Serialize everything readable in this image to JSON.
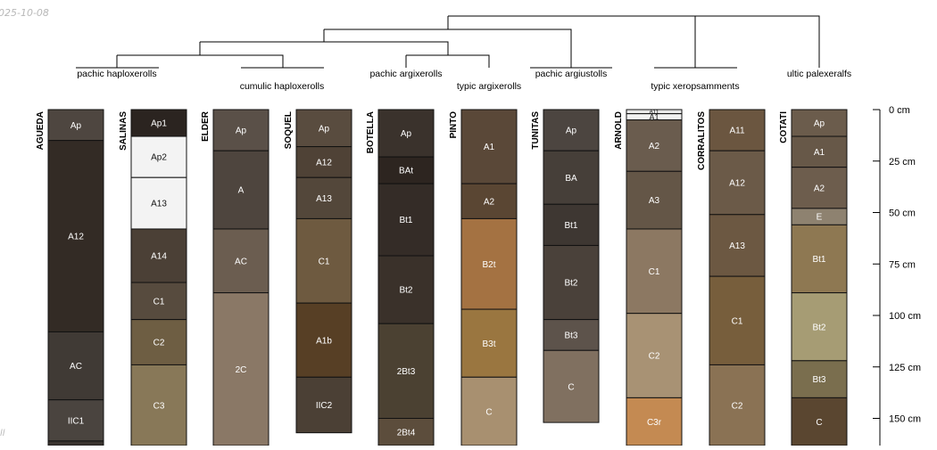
{
  "date_label": "025-10-08",
  "corner_label": "ll",
  "taxa": [
    {
      "id": "pachic-haploxerolls",
      "label": "pachic haploxerolls"
    },
    {
      "id": "cumulic-haploxerolls",
      "label": "cumulic haploxerolls"
    },
    {
      "id": "pachic-argixerolls",
      "label": "pachic argixerolls"
    },
    {
      "id": "typic-argixerolls",
      "label": "typic argixerolls"
    },
    {
      "id": "pachic-argiustolls",
      "label": "pachic argiustolls"
    },
    {
      "id": "typic-xeropsamments",
      "label": "typic xeropsamments"
    },
    {
      "id": "ultic-palexeralfs",
      "label": "ultic palexeralfs"
    }
  ],
  "depth_axis": {
    "unit": "cm",
    "ticks": [
      {
        "depth": 0,
        "label": "0 cm"
      },
      {
        "depth": 25,
        "label": "25 cm"
      },
      {
        "depth": 50,
        "label": "50 cm"
      },
      {
        "depth": 75,
        "label": "75 cm"
      },
      {
        "depth": 100,
        "label": "100 cm"
      },
      {
        "depth": 125,
        "label": "125 cm"
      },
      {
        "depth": 150,
        "label": "150 cm"
      }
    ]
  },
  "profiles": [
    {
      "name": "AGUEDA",
      "horizons": [
        {
          "name": "Ap",
          "top": 0,
          "bottom": 15,
          "color": "#4e4640"
        },
        {
          "name": "A12",
          "top": 15,
          "bottom": 108,
          "color": "#332b25"
        },
        {
          "name": "AC",
          "top": 108,
          "bottom": 141,
          "color": "#403a35"
        },
        {
          "name": "IIC1",
          "top": 141,
          "bottom": 161,
          "color": "#4a443f"
        },
        {
          "name": "",
          "top": 161,
          "bottom": 170,
          "color": "#3a342f"
        }
      ]
    },
    {
      "name": "SALINAS",
      "horizons": [
        {
          "name": "Ap1",
          "top": 0,
          "bottom": 13,
          "color": "#2b2420"
        },
        {
          "name": "Ap2",
          "top": 13,
          "bottom": 33,
          "color": "#f3f3f3"
        },
        {
          "name": "A13",
          "top": 33,
          "bottom": 58,
          "color": "#f3f3f3"
        },
        {
          "name": "A14",
          "top": 58,
          "bottom": 84,
          "color": "#4b4036"
        },
        {
          "name": "C1",
          "top": 84,
          "bottom": 102,
          "color": "#574b3e"
        },
        {
          "name": "C2",
          "top": 102,
          "bottom": 124,
          "color": "#6e5e43"
        },
        {
          "name": "C3",
          "top": 124,
          "bottom": 170,
          "color": "#887858"
        }
      ]
    },
    {
      "name": "ELDER",
      "horizons": [
        {
          "name": "Ap",
          "top": 0,
          "bottom": 20,
          "color": "#5a5048"
        },
        {
          "name": "A",
          "top": 20,
          "bottom": 58,
          "color": "#4e453e"
        },
        {
          "name": "AC",
          "top": 58,
          "bottom": 89,
          "color": "#6b5d50"
        },
        {
          "name": "2C",
          "top": 89,
          "bottom": 170,
          "color": "#8a7866"
        }
      ]
    },
    {
      "name": "SOQUEL",
      "horizons": [
        {
          "name": "Ap",
          "top": 0,
          "bottom": 18,
          "color": "#594c3f"
        },
        {
          "name": "A12",
          "top": 18,
          "bottom": 33,
          "color": "#4f4236"
        },
        {
          "name": "A13",
          "top": 33,
          "bottom": 53,
          "color": "#53473a"
        },
        {
          "name": "C1",
          "top": 53,
          "bottom": 94,
          "color": "#6e5a40"
        },
        {
          "name": "A1b",
          "top": 94,
          "bottom": 130,
          "color": "#573f25"
        },
        {
          "name": "IIC2",
          "top": 130,
          "bottom": 157,
          "color": "#4b4035"
        }
      ]
    },
    {
      "name": "BOTELLA",
      "horizons": [
        {
          "name": "Ap",
          "top": 0,
          "bottom": 23,
          "color": "#3a322c"
        },
        {
          "name": "BAt",
          "top": 23,
          "bottom": 36,
          "color": "#2d2520"
        },
        {
          "name": "Bt1",
          "top": 36,
          "bottom": 71,
          "color": "#342c27"
        },
        {
          "name": "Bt2",
          "top": 71,
          "bottom": 104,
          "color": "#3a312a"
        },
        {
          "name": "2Bt3",
          "top": 104,
          "bottom": 150,
          "color": "#4b4132"
        },
        {
          "name": "2Bt4",
          "top": 150,
          "bottom": 170,
          "color": "#5c4d3c"
        }
      ]
    },
    {
      "name": "PINTO",
      "horizons": [
        {
          "name": "A1",
          "top": 0,
          "bottom": 36,
          "color": "#5a4838"
        },
        {
          "name": "A2",
          "top": 36,
          "bottom": 53,
          "color": "#5a4633"
        },
        {
          "name": "B2t",
          "top": 53,
          "bottom": 97,
          "color": "#a47242"
        },
        {
          "name": "B3t",
          "top": 97,
          "bottom": 130,
          "color": "#9a7640"
        },
        {
          "name": "C",
          "top": 130,
          "bottom": 170,
          "color": "#a89070"
        }
      ]
    },
    {
      "name": "TUNITAS",
      "horizons": [
        {
          "name": "Ap",
          "top": 0,
          "bottom": 20,
          "color": "#4c4540"
        },
        {
          "name": "BA",
          "top": 20,
          "bottom": 46,
          "color": "#463f39"
        },
        {
          "name": "Bt1",
          "top": 46,
          "bottom": 66,
          "color": "#3e3732"
        },
        {
          "name": "Bt2",
          "top": 66,
          "bottom": 102,
          "color": "#4a413a"
        },
        {
          "name": "Bt3",
          "top": 102,
          "bottom": 117,
          "color": "#5d534b"
        },
        {
          "name": "C",
          "top": 117,
          "bottom": 152,
          "color": "#807060"
        }
      ]
    },
    {
      "name": "ARNOLD",
      "horizons": [
        {
          "name": "A11",
          "top": 0,
          "bottom": 2,
          "color": "#e8e8e8"
        },
        {
          "name": "A1",
          "top": 2,
          "bottom": 5,
          "color": "#f2f2f2"
        },
        {
          "name": "A2",
          "top": 5,
          "bottom": 30,
          "color": "#6a5c4e"
        },
        {
          "name": "A3",
          "top": 30,
          "bottom": 58,
          "color": "#645647"
        },
        {
          "name": "C1",
          "top": 58,
          "bottom": 99,
          "color": "#8c7862"
        },
        {
          "name": "C2",
          "top": 99,
          "bottom": 140,
          "color": "#a89274"
        },
        {
          "name": "C3r",
          "top": 140,
          "bottom": 170,
          "color": "#c48a52"
        }
      ]
    },
    {
      "name": "CORRALITOS",
      "horizons": [
        {
          "name": "A11",
          "top": 0,
          "bottom": 20,
          "color": "#6b5640"
        },
        {
          "name": "A12",
          "top": 20,
          "bottom": 51,
          "color": "#6b5a48"
        },
        {
          "name": "A13",
          "top": 51,
          "bottom": 81,
          "color": "#6c5842"
        },
        {
          "name": "C1",
          "top": 81,
          "bottom": 124,
          "color": "#775e3c"
        },
        {
          "name": "C2",
          "top": 124,
          "bottom": 170,
          "color": "#8a7254"
        }
      ]
    },
    {
      "name": "COTATI",
      "horizons": [
        {
          "name": "Ap",
          "top": 0,
          "bottom": 13,
          "color": "#6b5c4c"
        },
        {
          "name": "A1",
          "top": 13,
          "bottom": 28,
          "color": "#675848"
        },
        {
          "name": "A2",
          "top": 28,
          "bottom": 48,
          "color": "#6d5d4d"
        },
        {
          "name": "E",
          "top": 48,
          "bottom": 56,
          "color": "#8e8270"
        },
        {
          "name": "Bt1",
          "top": 56,
          "bottom": 89,
          "color": "#8e7852"
        },
        {
          "name": "Bt2",
          "top": 89,
          "bottom": 122,
          "color": "#a69c74"
        },
        {
          "name": "Bt3",
          "top": 122,
          "bottom": 140,
          "color": "#7a6e4e"
        },
        {
          "name": "C",
          "top": 140,
          "bottom": 170,
          "color": "#5a4630"
        }
      ]
    }
  ]
}
